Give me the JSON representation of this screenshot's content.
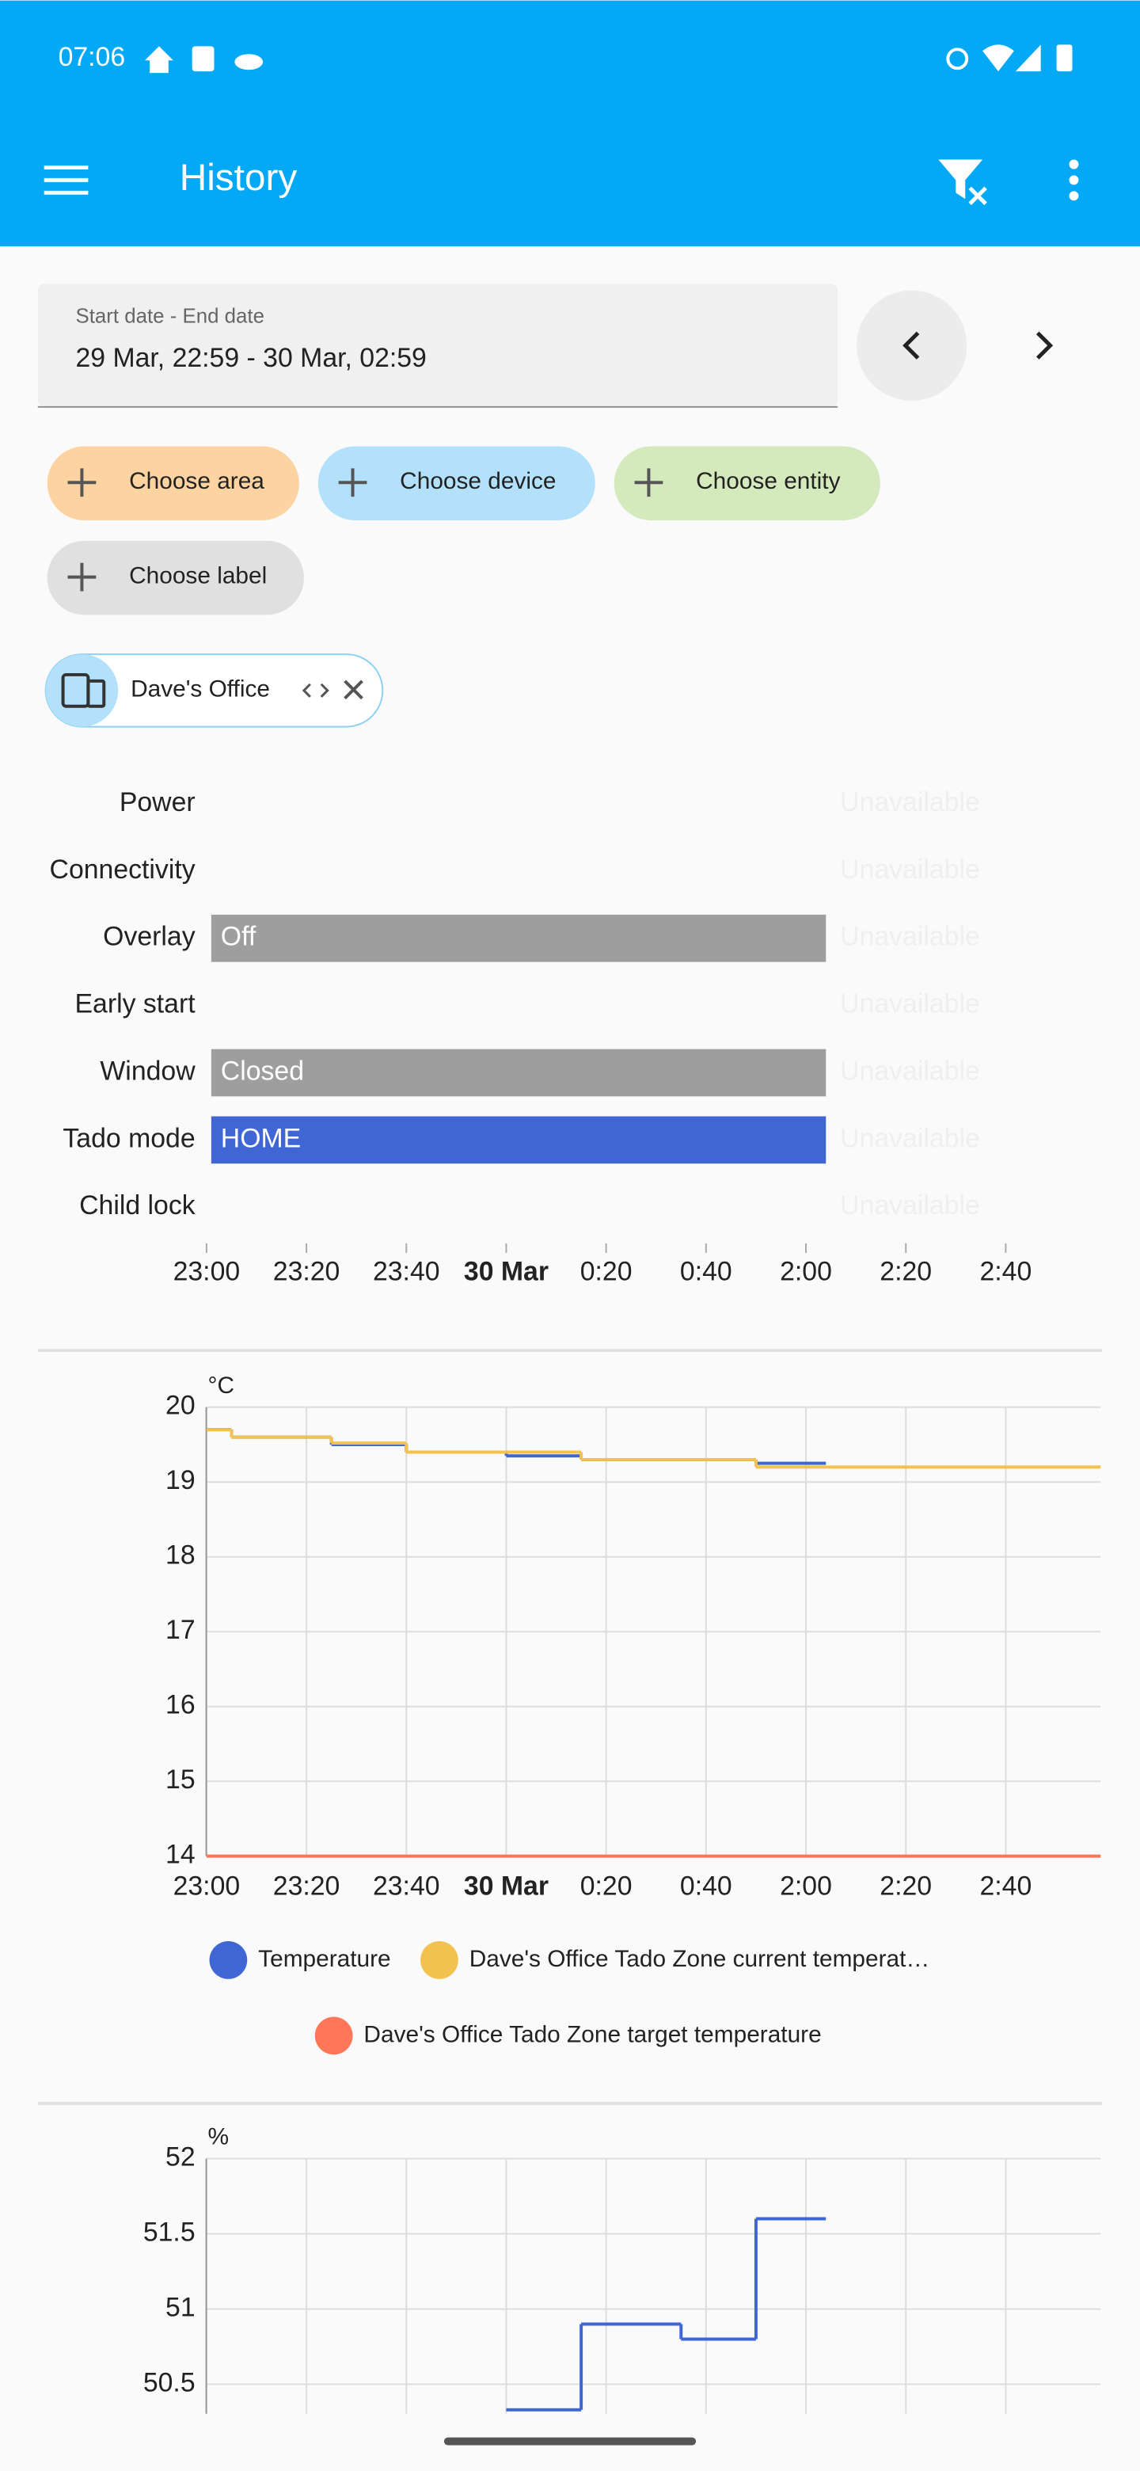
{
  "status_bar": {
    "time": "07:06"
  },
  "app_bar": {
    "title": "History"
  },
  "date_picker": {
    "label": "Start date - End date",
    "value": "29 Mar, 22:59 - 30 Mar, 02:59"
  },
  "filters": {
    "chips": [
      "Choose area",
      "Choose device",
      "Choose entity",
      "Choose label"
    ],
    "target": "Dave's Office"
  },
  "time_axis": {
    "xlim": [
      1379,
      1559
    ],
    "xticks": [
      {
        "value": 1380,
        "label": "23:00"
      },
      {
        "value": 1400,
        "label": "23:20"
      },
      {
        "value": 1420,
        "label": "23:40"
      },
      {
        "value": 1440,
        "label": "30 Mar",
        "bold": true
      },
      {
        "value": 1460,
        "label": "0:20"
      },
      {
        "value": 1480,
        "label": "0:40"
      },
      {
        "value": 1500,
        "label": "2:00"
      },
      {
        "value": 1520,
        "label": "2:20"
      },
      {
        "value": 1540,
        "label": "2:40"
      }
    ]
  },
  "timeline": {
    "type": "timeline",
    "rows": [
      {
        "name": "Power",
        "segments": [
          {
            "state": "Unavailable",
            "start": 1504,
            "end": 1559
          }
        ]
      },
      {
        "name": "Connectivity",
        "segments": [
          {
            "state": "Unavailable",
            "start": 1504,
            "end": 1559
          }
        ]
      },
      {
        "name": "Overlay",
        "segments": [
          {
            "state": "Off",
            "start": 1380,
            "end": 1504,
            "color": "#9e9e9e"
          },
          {
            "state": "Unavailable",
            "start": 1504,
            "end": 1559
          }
        ]
      },
      {
        "name": "Early start",
        "segments": [
          {
            "state": "Unavailable",
            "start": 1504,
            "end": 1559
          }
        ]
      },
      {
        "name": "Window",
        "segments": [
          {
            "state": "Closed",
            "start": 1380,
            "end": 1504,
            "color": "#9e9e9e"
          },
          {
            "state": "Unavailable",
            "start": 1504,
            "end": 1559
          }
        ]
      },
      {
        "name": "Tado mode",
        "segments": [
          {
            "state": "HOME",
            "start": 1380,
            "end": 1504,
            "color": "#3f66d4"
          },
          {
            "state": "Unavailable",
            "start": 1504,
            "end": 1559
          }
        ]
      },
      {
        "name": "Child lock",
        "segments": [
          {
            "state": "Unavailable",
            "start": 1504,
            "end": 1559
          }
        ]
      }
    ]
  },
  "charts": [
    {
      "type": "line",
      "unit": "°C",
      "ylim": [
        14,
        20
      ],
      "yticks": [
        14,
        15,
        16,
        17,
        18,
        19,
        20
      ],
      "grid": true,
      "show_x_labels": true,
      "series": [
        {
          "name": "Temperature",
          "color": "#3f66d4",
          "x": [
            1380,
            1385,
            1405,
            1420,
            1440,
            1455,
            1490,
            1504
          ],
          "values": [
            19.7,
            19.6,
            19.5,
            19.4,
            19.35,
            19.3,
            19.25,
            19.25
          ]
        },
        {
          "name": "Dave's Office Tado Zone current temperat…",
          "color": "#f2c14e",
          "x": [
            1380,
            1385,
            1405,
            1420,
            1440,
            1455,
            1490,
            1559
          ],
          "values": [
            19.7,
            19.6,
            19.52,
            19.4,
            19.4,
            19.3,
            19.2,
            19.2
          ]
        },
        {
          "name": "Dave's Office Tado Zone target temperature",
          "color": "#ff7658",
          "x": [
            1380,
            1559
          ],
          "values": [
            14,
            14
          ]
        }
      ]
    },
    {
      "type": "line",
      "unit": "%",
      "ylim": [
        50,
        52
      ],
      "yticks": [
        50.5,
        51,
        51.5,
        52
      ],
      "grid": true,
      "show_x_labels": false,
      "series": [
        {
          "color": "#3f66d4",
          "x": [
            1440,
            1455,
            1475,
            1490,
            1504
          ],
          "values": [
            50.33,
            50.9,
            50.8,
            51.6,
            51.6
          ]
        }
      ]
    }
  ]
}
